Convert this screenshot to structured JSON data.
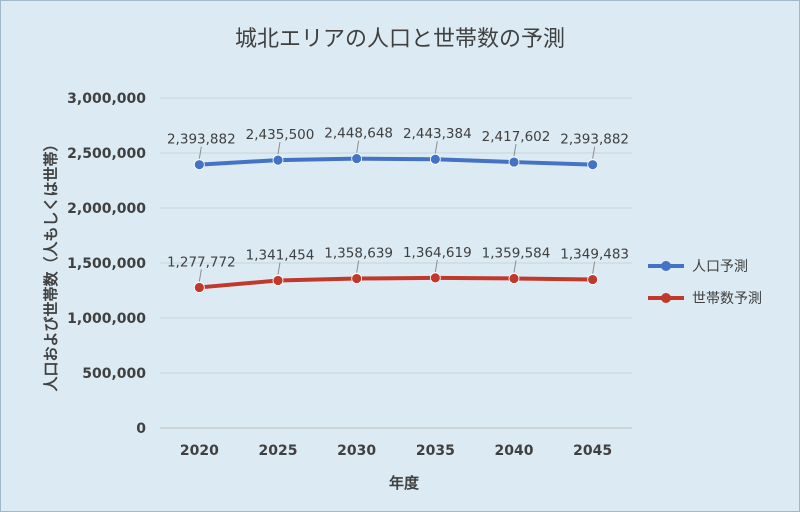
{
  "chart_data": {
    "type": "line",
    "title": "城北エリアの人口と世帯数の予測",
    "xlabel": "年度",
    "ylabel": "人口および世帯数（人もしくは世帯）",
    "categories": [
      "2020",
      "2025",
      "2030",
      "2035",
      "2040",
      "2045"
    ],
    "ylim": [
      0,
      3000000
    ],
    "yticks": [
      0,
      500000,
      1000000,
      1500000,
      2000000,
      2500000,
      3000000
    ],
    "ytick_labels": [
      "0",
      "500,000",
      "1,000,000",
      "1,500,000",
      "2,000,000",
      "2,500,000",
      "3,000,000"
    ],
    "grid": true,
    "legend": "right",
    "series": [
      {
        "name": "人口予測",
        "color": "#4472c4",
        "values": [
          2393882,
          2435500,
          2448648,
          2443384,
          2417602,
          2393882
        ],
        "labels": [
          "2,393,882",
          "2,435,500",
          "2,448,648",
          "2,443,384",
          "2,417,602",
          "2,393,882"
        ]
      },
      {
        "name": "世帯数予測",
        "color": "#c0392b",
        "values": [
          1277772,
          1341454,
          1358639,
          1364619,
          1359584,
          1349483
        ],
        "labels": [
          "1,277,772",
          "1,341,454",
          "1,358,639",
          "1,364,619",
          "1,359,584",
          "1,349,483"
        ]
      }
    ]
  }
}
